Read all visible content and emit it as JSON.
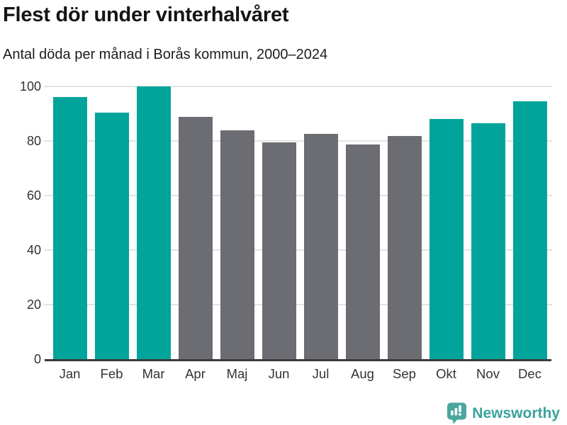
{
  "header": {
    "title": "Flest dör under vinterhalvåret",
    "subtitle": "Antal döda per månad i Borås kommun, 2000–2024"
  },
  "chart_data": {
    "type": "bar",
    "title": "Flest dör under vinterhalvåret",
    "subtitle": "Antal döda per månad i Borås kommun, 2000–2024",
    "categories": [
      "Jan",
      "Feb",
      "Mar",
      "Apr",
      "Maj",
      "Jun",
      "Jul",
      "Aug",
      "Sep",
      "Okt",
      "Nov",
      "Dec"
    ],
    "values": [
      96.2,
      90.4,
      100,
      88.9,
      84,
      79.5,
      82.5,
      78.6,
      81.8,
      88,
      86.5,
      94.6
    ],
    "bar_colors": [
      "teal",
      "teal",
      "teal",
      "gray",
      "gray",
      "gray",
      "gray",
      "gray",
      "gray",
      "teal",
      "teal",
      "teal"
    ],
    "colors": {
      "teal": "#00a49a",
      "gray": "#6c6c73"
    },
    "xlabel": "",
    "ylabel": "",
    "ylim": [
      0,
      100
    ],
    "yticks": [
      0,
      20,
      40,
      60,
      80,
      100
    ],
    "grid": true,
    "legend": false
  },
  "footer": {
    "brand": "Newsworthy",
    "brand_color": "#3aa39b",
    "logo_icon": "bar-chart-speech-bubble-icon"
  }
}
